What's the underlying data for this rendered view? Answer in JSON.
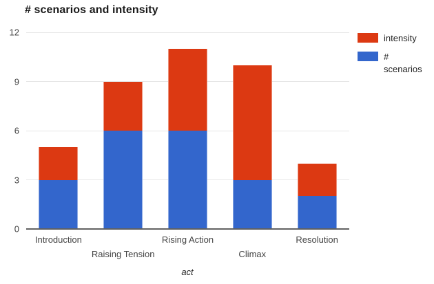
{
  "chart_data": {
    "type": "bar",
    "stacked": true,
    "title": "# scenarios and intensity",
    "xlabel": "act",
    "ylabel": "",
    "categories": [
      "Introduction",
      "Raising Tension",
      "Rising Action",
      "Climax",
      "Resolution"
    ],
    "series": [
      {
        "name": "# scenarios",
        "color": "#3366cc",
        "values": [
          3,
          6,
          6,
          3,
          2
        ]
      },
      {
        "name": "intensity",
        "color": "#dc3912",
        "values": [
          2,
          3,
          5,
          7,
          2
        ]
      }
    ],
    "stacked_totals": [
      5,
      9,
      11,
      10,
      4
    ],
    "ylim": [
      0,
      12
    ],
    "yticks": [
      0,
      3,
      6,
      9,
      12
    ],
    "grid": true,
    "legend_position": "right"
  },
  "legend": {
    "items": [
      {
        "label": "intensity",
        "color": "#dc3912"
      },
      {
        "label": "# scenarios",
        "color": "#3366cc"
      }
    ]
  },
  "colors": {
    "gridline": "#e6e6e6",
    "baseline": "#616161",
    "axis_text": "#444444",
    "title_text": "#1a1a1a"
  }
}
